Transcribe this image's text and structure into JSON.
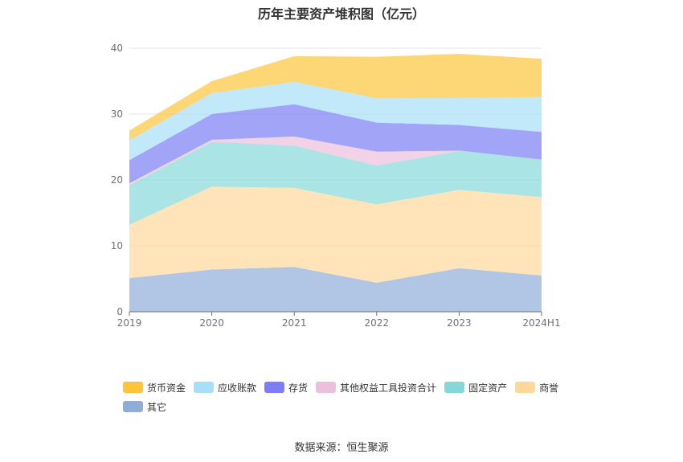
{
  "chart_data": {
    "type": "area",
    "stacked": true,
    "title": "历年主要资产堆积图（亿元）",
    "categories": [
      "2019",
      "2020",
      "2021",
      "2022",
      "2023",
      "2024H1"
    ],
    "ylim": [
      0,
      40
    ],
    "yticks": [
      0,
      10,
      20,
      30,
      40
    ],
    "grid": true,
    "legend_position": "bottom",
    "series": [
      {
        "name": "其它",
        "color": "#90acd8",
        "values": [
          5.1,
          6.4,
          6.8,
          4.4,
          6.6,
          5.5
        ]
      },
      {
        "name": "商誉",
        "color": "#fdd89a",
        "values": [
          8.1,
          12.6,
          12.0,
          11.9,
          11.9,
          11.9
        ]
      },
      {
        "name": "固定资产",
        "color": "#86d8d8",
        "values": [
          6.0,
          6.8,
          6.4,
          5.9,
          5.9,
          5.7
        ]
      },
      {
        "name": "其他权益工具投资合计",
        "color": "#ecbfdc",
        "values": [
          0.3,
          0.3,
          1.4,
          2.1,
          0.05,
          0.0
        ]
      },
      {
        "name": "存货",
        "color": "#7b7ef5",
        "values": [
          3.5,
          3.9,
          4.9,
          4.4,
          3.9,
          4.2
        ]
      },
      {
        "name": "应收账款",
        "color": "#a6dff8",
        "values": [
          3.0,
          3.2,
          3.4,
          3.7,
          4.1,
          5.3
        ]
      },
      {
        "name": "货币资金",
        "color": "#fcc43a",
        "values": [
          1.5,
          1.8,
          3.9,
          6.3,
          6.7,
          5.8
        ]
      }
    ],
    "legend_order": [
      "货币资金",
      "应收账款",
      "存货",
      "其他权益工具投资合计",
      "固定资产",
      "商誉",
      "其它"
    ]
  },
  "source": "数据来源：恒生聚源"
}
